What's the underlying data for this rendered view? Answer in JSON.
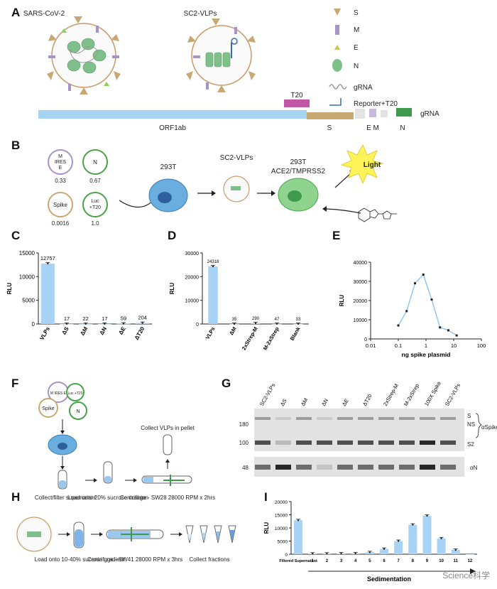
{
  "panels": {
    "A": {
      "letter": "A",
      "virus1": "SARS-CoV-2",
      "virus2": "SC2-VLPs",
      "legend": [
        "S",
        "M",
        "E",
        "N",
        "gRNA",
        "Reporter+T20"
      ],
      "genome": {
        "t20": "T20",
        "orf": "ORF1ab",
        "s": "S",
        "em": "E M",
        "n": "N",
        "grna": "gRNA"
      }
    },
    "B": {
      "letter": "B",
      "plasmids": [
        {
          "name": "M\nIRES\nE",
          "ratio": "0.33"
        },
        {
          "name": "N",
          "ratio": "0.67"
        },
        {
          "name": "Spike",
          "ratio": "0.0016"
        },
        {
          "name": "Luc\n+T20",
          "ratio": "1.0"
        }
      ],
      "cell1": "293T",
      "vlp": "SC2-VLPs",
      "cell2": "293T",
      "cell2b": "ACE2/TMPRSS2",
      "light": "Light"
    },
    "G": {
      "letter": "G",
      "lanes": [
        "SC2-VLPs",
        "ΔS",
        "ΔM",
        "ΔN",
        "ΔE",
        "ΔT20",
        "2xStrep-M",
        "M-2xStrep",
        "100X Spike",
        "SC2-VLPs"
      ],
      "mw_top": [
        "180",
        "100"
      ],
      "mw_bottom": "48",
      "bands_right": [
        "S",
        "NS",
        "S2"
      ],
      "antibody1": "αSpike",
      "antibody2": "αN"
    },
    "F": {
      "letter": "F",
      "plasmids": [
        "M IRES E",
        "Luc +T20",
        "Spike",
        "N"
      ],
      "steps": [
        "Collect/filter supernatant",
        "Load onto 20% sucrose cushion",
        "Centrifuge - SW28 28000 RPM x 2hrs",
        "Collect VLPs in pellet"
      ]
    },
    "H": {
      "letter": "H",
      "steps": [
        "Load onto 10-40% sucrose gradient",
        "Centrifuge - SW41 28000 RPM x 3hrs",
        "Collect fractions"
      ]
    },
    "C": {
      "letter": "C"
    },
    "D": {
      "letter": "D"
    },
    "E": {
      "letter": "E"
    },
    "I": {
      "letter": "I"
    }
  },
  "watermark": "Science科学",
  "chart_data": [
    {
      "panel": "C",
      "type": "bar",
      "categories": [
        "VLPs",
        "ΔS",
        "ΔM",
        "ΔN",
        "ΔE",
        "ΔT20"
      ],
      "values": [
        12757,
        17,
        22,
        17,
        59,
        204
      ],
      "data_labels": [
        "12757",
        "17",
        "22",
        "17",
        "59",
        "204"
      ],
      "ylabel": "RLU",
      "ylim": [
        0,
        15000
      ],
      "yticks": [
        0,
        5000,
        10000,
        15000
      ]
    },
    {
      "panel": "D",
      "type": "bar",
      "categories": [
        "VLPs",
        "ΔM",
        "2xStrep-M",
        "M-2xStrep",
        "Blank"
      ],
      "values": [
        24318,
        35,
        290,
        47,
        33
      ],
      "data_labels": [
        "24318",
        "35",
        "290",
        "47",
        "33"
      ],
      "ylabel": "RLU",
      "ylim": [
        0,
        30000
      ],
      "yticks": [
        0,
        10000,
        20000,
        30000
      ]
    },
    {
      "panel": "E",
      "type": "line",
      "x": [
        0.1,
        0.2,
        0.4,
        0.8,
        1.6,
        3.2,
        6.4,
        12.8
      ],
      "y": [
        7000,
        14500,
        29000,
        33500,
        20500,
        6000,
        4500,
        1800
      ],
      "xlabel": "ng spike plasmid",
      "ylabel": "RLU",
      "xscale": "log",
      "xlim": [
        0.01,
        100
      ],
      "xticks": [
        "0.01",
        "0.1",
        "1",
        "10",
        "100"
      ],
      "ylim": [
        0,
        40000
      ],
      "yticks": [
        0,
        10000,
        20000,
        30000,
        40000
      ]
    },
    {
      "panel": "I",
      "type": "bar",
      "categories": [
        "Filtered Supernatant",
        "1",
        "2",
        "3",
        "4",
        "5",
        "6",
        "7",
        "8",
        "9",
        "10",
        "11",
        "12"
      ],
      "values": [
        12900,
        200,
        200,
        250,
        300,
        700,
        2000,
        5000,
        11200,
        14600,
        6000,
        1600,
        0
      ],
      "ylabel": "RLU",
      "xlabel": "Sedimentation",
      "ylim": [
        0,
        20000
      ],
      "yticks": [
        0,
        5000,
        10000,
        15000,
        20000
      ]
    }
  ]
}
